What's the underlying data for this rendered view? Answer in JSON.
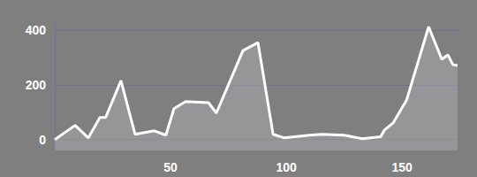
{
  "chart_data": {
    "type": "area",
    "color": "#ffffff",
    "x": [
      0,
      8.8,
      14.5,
      19.5,
      22,
      28.6,
      34.7,
      43,
      48,
      51.5,
      56.5,
      66.4,
      69.8,
      81.3,
      87.8,
      94.3,
      99.2,
      110,
      115.6,
      125,
      132.8,
      140.8,
      142.4,
      146.2,
      152,
      161.5,
      167.2,
      169.8,
      172,
      174
    ],
    "values": [
      0,
      52,
      6,
      81,
      81,
      216,
      19,
      32,
      16,
      113,
      139,
      135,
      97,
      326,
      355,
      19,
      6,
      16,
      19,
      16,
      3,
      10,
      35,
      61,
      145,
      413,
      294,
      310,
      274,
      271
    ],
    "xlim": [
      0,
      174
    ],
    "xticks": [
      50,
      100,
      150
    ],
    "ylim": [
      -40,
      430
    ],
    "yticks": [
      0,
      200,
      400
    ],
    "grid": true
  }
}
